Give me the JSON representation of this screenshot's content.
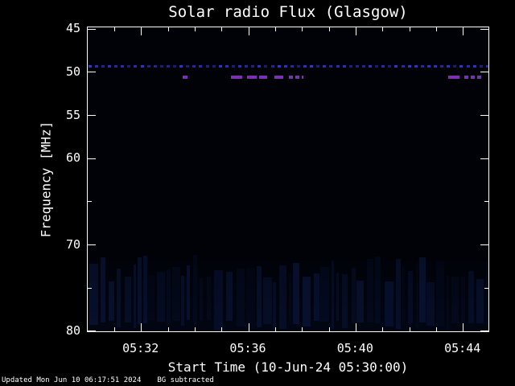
{
  "header": {
    "title": "Solar radio Flux (Glasgow)"
  },
  "footer": {
    "updated": "Updated Mon Jun 10 06:17:51 2024",
    "note": "BG subtracted"
  },
  "colors": {
    "background": "#000000",
    "plot_background": "#000207",
    "frame": "#ffffff",
    "text": "#ffffff",
    "blue_rfi": "#3434e0",
    "purple_rfi": "#7c30b4",
    "noise_blue": "#1c348c"
  },
  "chart_data": {
    "type": "heatmap",
    "title": "Solar radio Flux (Glasgow)",
    "xlabel": "Start Time (10-Jun-24 05:30:00)",
    "ylabel": "Frequency [MHz]",
    "x_start_time": "05:30:00",
    "x_end_time": "05:45:00",
    "x_range_minutes": [
      0,
      15
    ],
    "x_ticks": [
      {
        "label": "05:32",
        "minutes": 2
      },
      {
        "label": "05:36",
        "minutes": 6
      },
      {
        "label": "05:40",
        "minutes": 10
      },
      {
        "label": "05:44",
        "minutes": 14
      }
    ],
    "x_minor_ticks_minutes": [
      1,
      3,
      4,
      5,
      7,
      8,
      9,
      11,
      12,
      13
    ],
    "y_range_mhz": [
      44.8,
      80.2
    ],
    "y_axis_inverted": true,
    "y_ticks_mhz": [
      45,
      50,
      55,
      60,
      70,
      80
    ],
    "y_minor_ticks_mhz": [
      65,
      75
    ],
    "grid": false,
    "legend": false,
    "features": [
      {
        "name": "blue-dotted-interference-line",
        "type": "dotted-line",
        "frequency_mhz": 49.3,
        "start_minutes": 0,
        "end_minutes": 15,
        "color": "#3434e0",
        "description": "horizontal dotted blue RFI line spanning full time range just above 50 MHz tick"
      },
      {
        "name": "purple-interference-dashes",
        "type": "dash-segments",
        "frequency_mhz": 50.6,
        "color": "#7c30b4",
        "segments_minutes": [
          [
            3.55,
            3.72
          ],
          [
            5.35,
            5.75
          ],
          [
            5.95,
            6.3
          ],
          [
            6.4,
            6.7
          ],
          [
            6.95,
            7.3
          ],
          [
            7.5,
            8.05
          ],
          [
            13.45,
            13.85
          ],
          [
            14.05,
            14.7
          ]
        ],
        "description": "intermittent purple dashes near 51 MHz around 05:35-05:38 and 05:43-05:45"
      },
      {
        "name": "low-frequency-noise-striations",
        "type": "vertical-striations",
        "frequency_band_mhz": [
          71.2,
          79.9
        ],
        "start_minutes": 0,
        "end_minutes": 15,
        "color": "#1c348c",
        "description": "faint dark-blue vertical noise bands across the bottom of the spectrogram"
      }
    ]
  }
}
